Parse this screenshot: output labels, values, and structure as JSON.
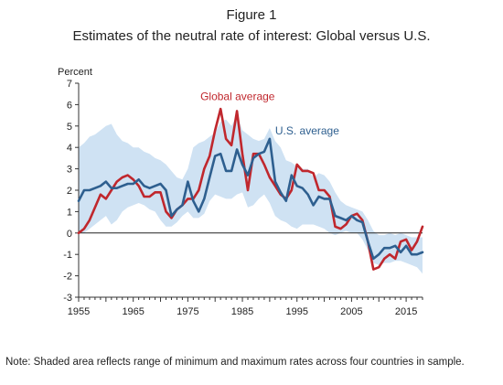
{
  "figure_number": "Figure 1",
  "chart_data": {
    "type": "line",
    "title": "Estimates of the neutral rate of interest: Global versus U.S.",
    "ylabel": "Percent",
    "xlabel": "",
    "xlim": [
      1955,
      2018
    ],
    "ylim": [
      -3,
      7
    ],
    "yticks": [
      7,
      6,
      5,
      4,
      3,
      2,
      1,
      0,
      -1,
      -2,
      -3
    ],
    "xticks": [
      1955,
      1965,
      1975,
      1985,
      1995,
      2005,
      2015
    ],
    "grid": false,
    "x": [
      1955,
      1956,
      1957,
      1958,
      1959,
      1960,
      1961,
      1962,
      1963,
      1964,
      1965,
      1966,
      1967,
      1968,
      1969,
      1970,
      1971,
      1972,
      1973,
      1974,
      1975,
      1976,
      1977,
      1978,
      1979,
      1980,
      1981,
      1982,
      1983,
      1984,
      1985,
      1986,
      1987,
      1988,
      1989,
      1990,
      1991,
      1992,
      1993,
      1994,
      1995,
      1996,
      1997,
      1998,
      1999,
      2000,
      2001,
      2002,
      2003,
      2004,
      2005,
      2006,
      2007,
      2008,
      2009,
      2010,
      2011,
      2012,
      2013,
      2014,
      2015,
      2016,
      2017,
      2018
    ],
    "series": [
      {
        "name": "Global average",
        "color": "#c0272d",
        "values": [
          0.0,
          0.2,
          0.6,
          1.2,
          1.8,
          1.6,
          2.0,
          2.4,
          2.6,
          2.7,
          2.5,
          2.2,
          1.7,
          1.7,
          1.9,
          1.9,
          1.0,
          0.7,
          1.1,
          1.3,
          1.6,
          1.6,
          2.0,
          3.0,
          3.6,
          4.8,
          5.8,
          4.4,
          4.1,
          5.7,
          3.7,
          2.0,
          3.7,
          3.7,
          3.2,
          2.6,
          2.2,
          1.8,
          1.6,
          2.0,
          3.2,
          2.9,
          2.9,
          2.8,
          2.0,
          2.0,
          1.7,
          0.3,
          0.2,
          0.4,
          0.8,
          0.9,
          0.6,
          -0.4,
          -1.7,
          -1.6,
          -1.2,
          -1.0,
          -1.2,
          -0.4,
          -0.3,
          -0.8,
          -0.4,
          0.3
        ]
      },
      {
        "name": "U.S. average",
        "color": "#2e5f8f",
        "values": [
          1.5,
          2.0,
          2.0,
          2.1,
          2.2,
          2.4,
          2.1,
          2.1,
          2.2,
          2.3,
          2.3,
          2.5,
          2.2,
          2.1,
          2.2,
          2.3,
          2.0,
          0.8,
          1.1,
          1.3,
          2.4,
          1.5,
          1.0,
          1.6,
          2.6,
          3.6,
          3.7,
          2.9,
          2.9,
          3.9,
          3.2,
          2.7,
          3.5,
          3.7,
          3.8,
          4.4,
          2.4,
          1.9,
          1.5,
          2.7,
          2.2,
          2.1,
          1.8,
          1.3,
          1.7,
          1.6,
          1.6,
          0.8,
          0.7,
          0.6,
          0.8,
          0.6,
          0.5,
          -0.4,
          -1.2,
          -1.0,
          -0.7,
          -0.7,
          -0.6,
          -0.9,
          -0.6,
          -1.0,
          -1.0,
          -0.9
        ]
      }
    ],
    "band": {
      "color": "#cfe2f3",
      "upper": [
        4.0,
        4.2,
        4.5,
        4.6,
        4.8,
        5.0,
        5.1,
        4.6,
        4.3,
        4.2,
        4.0,
        4.0,
        3.8,
        3.7,
        3.5,
        3.4,
        3.2,
        2.9,
        2.6,
        2.5,
        3.0,
        4.0,
        4.2,
        4.3,
        4.5,
        4.7,
        5.2,
        5.3,
        5.0,
        5.5,
        4.8,
        4.6,
        4.4,
        4.3,
        4.4,
        4.9,
        4.3,
        4.0,
        3.4,
        3.3,
        3.1,
        3.0,
        3.0,
        2.6,
        2.8,
        2.7,
        2.4,
        1.9,
        1.5,
        1.3,
        1.2,
        1.1,
        1.0,
        0.6,
        0.1,
        -0.1,
        -0.1,
        0.0,
        -0.1,
        0.0,
        -0.1,
        -0.2,
        -0.2,
        -0.2
      ],
      "lower": [
        0.0,
        0.0,
        0.2,
        0.4,
        0.6,
        0.8,
        0.4,
        0.6,
        1.0,
        1.2,
        1.3,
        1.4,
        1.3,
        1.1,
        1.0,
        0.6,
        0.3,
        0.3,
        0.5,
        0.8,
        1.0,
        0.7,
        0.7,
        0.9,
        1.5,
        1.8,
        1.7,
        1.6,
        1.6,
        1.8,
        1.9,
        1.2,
        1.3,
        1.6,
        1.8,
        1.4,
        0.8,
        0.6,
        0.5,
        0.3,
        0.2,
        0.4,
        0.4,
        0.4,
        0.3,
        0.2,
        0.0,
        -0.1,
        0.0,
        0.1,
        0.0,
        0.0,
        -0.3,
        -0.8,
        -1.4,
        -1.5,
        -1.4,
        -1.4,
        -1.3,
        -1.3,
        -1.4,
        -1.5,
        -1.6,
        -1.9
      ]
    },
    "annotations": [
      {
        "text": "Global average",
        "x": 1977.3,
        "y": 6.2,
        "color": "#c0272d"
      },
      {
        "text": "U.S. average",
        "x": 1991.0,
        "y": 4.6,
        "color": "#2e5f8f"
      }
    ]
  },
  "note": "Note: Shaded area reflects range of minimum and maximum rates across four countries in sample."
}
